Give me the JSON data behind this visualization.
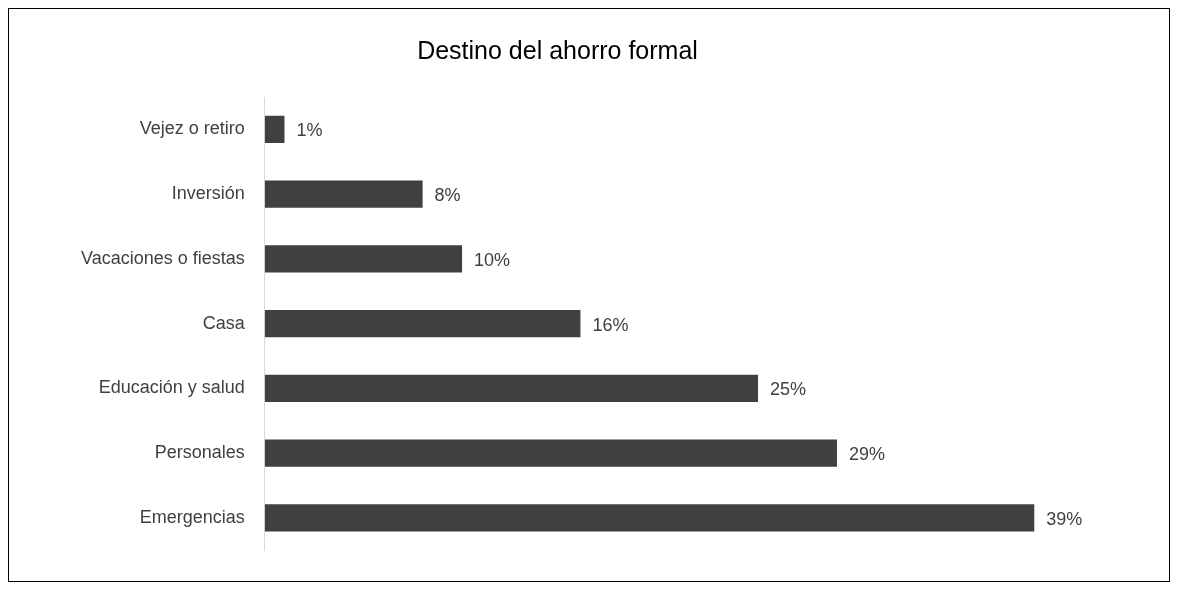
{
  "chart_data": {
    "type": "bar",
    "orientation": "horizontal",
    "title": "Destino del ahorro formal",
    "categories": [
      "Vejez o retiro",
      "Inversión",
      "Vacaciones o fiestas",
      "Casa",
      "Educación y salud",
      "Personales",
      "Emergencias"
    ],
    "values": [
      1,
      8,
      10,
      16,
      25,
      29,
      39
    ],
    "value_labels": [
      "1%",
      "8%",
      "10%",
      "16%",
      "25%",
      "29%",
      "39%"
    ],
    "color": "#404040",
    "legend": false
  }
}
